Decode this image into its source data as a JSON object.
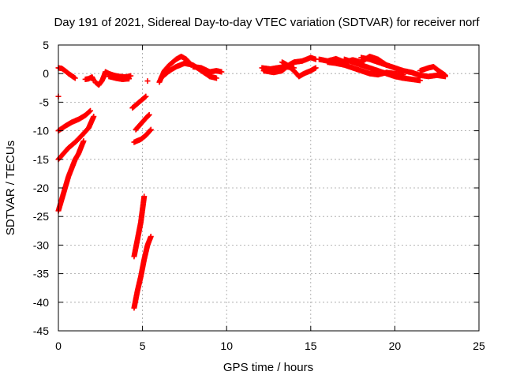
{
  "chart_data": {
    "type": "scatter",
    "title": "Day 191 of 2021, Sidereal Day-to-day VTEC variation (SDTVAR) for receiver norf",
    "xlabel": "GPS time / hours",
    "ylabel": "SDTVAR / TECUs",
    "xlim": [
      0,
      25
    ],
    "ylim": [
      -45,
      5
    ],
    "xticks": [
      0,
      5,
      10,
      15,
      20,
      25
    ],
    "yticks": [
      5,
      0,
      -5,
      -10,
      -15,
      -20,
      -25,
      -30,
      -35,
      -40,
      -45
    ],
    "xtick_labels": [
      "0",
      "5",
      "10",
      "15",
      "20",
      "25"
    ],
    "ytick_labels": [
      "5",
      "0",
      "-5",
      "-10",
      "-15",
      "-20",
      "-25",
      "-30",
      "-35",
      "-40",
      "-45"
    ],
    "grid": true,
    "marker": "+",
    "color": "#ff0000",
    "segments": [
      [
        [
          0.0,
          1.0
        ],
        [
          0.2,
          0.9
        ],
        [
          0.4,
          0.5
        ],
        [
          0.6,
          0.0
        ],
        [
          0.8,
          -0.4
        ],
        [
          1.0,
          -0.8
        ]
      ],
      [
        [
          1.6,
          -1.0
        ],
        [
          1.8,
          -0.9
        ],
        [
          2.0,
          -0.6
        ],
        [
          2.1,
          -1.2
        ]
      ],
      [
        [
          2.2,
          -1.5
        ],
        [
          2.4,
          -2.0
        ],
        [
          2.6,
          -1.2
        ],
        [
          2.7,
          -0.5
        ],
        [
          2.8,
          0.3
        ]
      ],
      [
        [
          2.8,
          0.3
        ],
        [
          3.0,
          0.0
        ],
        [
          3.3,
          -0.3
        ],
        [
          3.6,
          -0.5
        ],
        [
          4.0,
          -0.6
        ],
        [
          4.3,
          -0.4
        ]
      ],
      [
        [
          3.0,
          -0.5
        ],
        [
          3.4,
          -0.8
        ],
        [
          3.8,
          -1.0
        ],
        [
          4.2,
          -0.9
        ]
      ],
      [
        [
          6.0,
          -1.5
        ],
        [
          6.3,
          0.5
        ],
        [
          6.6,
          1.5
        ],
        [
          7.0,
          2.5
        ],
        [
          7.3,
          3.0
        ],
        [
          7.6,
          2.5
        ],
        [
          7.9,
          1.5
        ]
      ],
      [
        [
          6.2,
          -0.5
        ],
        [
          6.6,
          0.5
        ],
        [
          7.0,
          1.2
        ],
        [
          7.5,
          1.8
        ],
        [
          8.0,
          1.5
        ],
        [
          8.5,
          0.5
        ],
        [
          9.0,
          -0.5
        ],
        [
          9.4,
          -0.8
        ]
      ],
      [
        [
          8.0,
          1.2
        ],
        [
          8.5,
          1.0
        ],
        [
          9.0,
          0.3
        ],
        [
          9.4,
          0.5
        ],
        [
          9.7,
          0.3
        ]
      ],
      [
        [
          12.1,
          1.0
        ],
        [
          12.6,
          0.8
        ],
        [
          13.0,
          1.0
        ],
        [
          13.5,
          1.2
        ],
        [
          14.0,
          1.0
        ]
      ],
      [
        [
          12.2,
          0.5
        ],
        [
          12.8,
          0.2
        ],
        [
          13.3,
          0.5
        ],
        [
          13.7,
          1.5
        ],
        [
          14.0,
          2.0
        ],
        [
          14.5,
          2.2
        ],
        [
          15.0,
          2.8
        ],
        [
          15.3,
          2.5
        ]
      ],
      [
        [
          13.3,
          2.0
        ],
        [
          13.6,
          1.5
        ],
        [
          14.0,
          0.5
        ],
        [
          14.3,
          -0.5
        ],
        [
          14.6,
          0.0
        ],
        [
          15.0,
          0.5
        ],
        [
          15.3,
          1.0
        ]
      ],
      [
        [
          15.5,
          2.5
        ],
        [
          16.0,
          2.2
        ],
        [
          16.5,
          2.6
        ],
        [
          17.0,
          2.0
        ],
        [
          17.5,
          2.4
        ],
        [
          18.0,
          2.0
        ],
        [
          18.5,
          3.0
        ],
        [
          19.0,
          2.5
        ],
        [
          19.5,
          1.5
        ],
        [
          20.0,
          1.0
        ],
        [
          20.5,
          0.5
        ],
        [
          21.0,
          0.2
        ],
        [
          21.5,
          -0.3
        ],
        [
          22.0,
          -0.5
        ],
        [
          22.5,
          -0.3
        ],
        [
          23.0,
          -0.5
        ]
      ],
      [
        [
          16.0,
          2.0
        ],
        [
          16.5,
          1.8
        ],
        [
          17.0,
          1.5
        ],
        [
          17.5,
          1.0
        ],
        [
          18.0,
          0.5
        ],
        [
          18.5,
          0.0
        ],
        [
          19.0,
          -0.2
        ],
        [
          19.5,
          0.2
        ],
        [
          20.0,
          0.0
        ],
        [
          20.5,
          -0.2
        ]
      ],
      [
        [
          17.0,
          2.5
        ],
        [
          17.5,
          2.0
        ],
        [
          18.0,
          1.5
        ],
        [
          18.5,
          1.0
        ],
        [
          19.0,
          0.5
        ],
        [
          19.5,
          0.0
        ],
        [
          20.0,
          -0.5
        ],
        [
          20.5,
          -0.8
        ],
        [
          21.0,
          -1.0
        ],
        [
          21.5,
          -1.2
        ]
      ],
      [
        [
          18.0,
          2.8
        ],
        [
          18.5,
          2.5
        ],
        [
          19.0,
          2.0
        ],
        [
          19.5,
          1.5
        ]
      ],
      [
        [
          21.5,
          0.5
        ],
        [
          22.0,
          1.0
        ],
        [
          22.3,
          1.2
        ],
        [
          22.6,
          0.5
        ],
        [
          23.0,
          -0.3
        ]
      ],
      [
        [
          0.0,
          -10.0
        ],
        [
          0.4,
          -9.2
        ],
        [
          0.8,
          -8.5
        ],
        [
          1.2,
          -8.0
        ],
        [
          1.6,
          -7.3
        ],
        [
          1.9,
          -6.5
        ]
      ],
      [
        [
          0.0,
          -15.0
        ],
        [
          0.3,
          -14.0
        ],
        [
          0.6,
          -13.0
        ],
        [
          1.0,
          -12.0
        ],
        [
          1.4,
          -10.8
        ],
        [
          1.8,
          -9.5
        ],
        [
          2.1,
          -7.5
        ]
      ],
      [
        [
          0.0,
          -24.0
        ],
        [
          0.2,
          -22.0
        ],
        [
          0.4,
          -20.0
        ],
        [
          0.6,
          -18.0
        ],
        [
          0.8,
          -16.5
        ],
        [
          1.0,
          -15.0
        ],
        [
          1.2,
          -14.0
        ],
        [
          1.4,
          -12.5
        ],
        [
          1.5,
          -11.8
        ]
      ],
      [
        [
          4.4,
          -6.0
        ],
        [
          4.8,
          -5.0
        ],
        [
          5.2,
          -4.0
        ]
      ],
      [
        [
          4.6,
          -9.8
        ],
        [
          4.9,
          -8.8
        ],
        [
          5.2,
          -7.8
        ],
        [
          5.4,
          -7.2
        ]
      ],
      [
        [
          4.5,
          -12.0
        ],
        [
          4.9,
          -11.5
        ],
        [
          5.2,
          -10.8
        ],
        [
          5.5,
          -9.8
        ]
      ],
      [
        [
          4.5,
          -32.0
        ],
        [
          4.7,
          -29.0
        ],
        [
          4.9,
          -26.0
        ],
        [
          5.1,
          -21.5
        ]
      ],
      [
        [
          4.5,
          -41.0
        ],
        [
          4.7,
          -38.0
        ],
        [
          4.9,
          -35.5
        ],
        [
          5.1,
          -32.5
        ],
        [
          5.3,
          -30.0
        ],
        [
          5.5,
          -28.5
        ]
      ]
    ],
    "isolated_points": [
      [
        5.3,
        -1.3
      ],
      [
        0.0,
        -4.0
      ]
    ]
  }
}
